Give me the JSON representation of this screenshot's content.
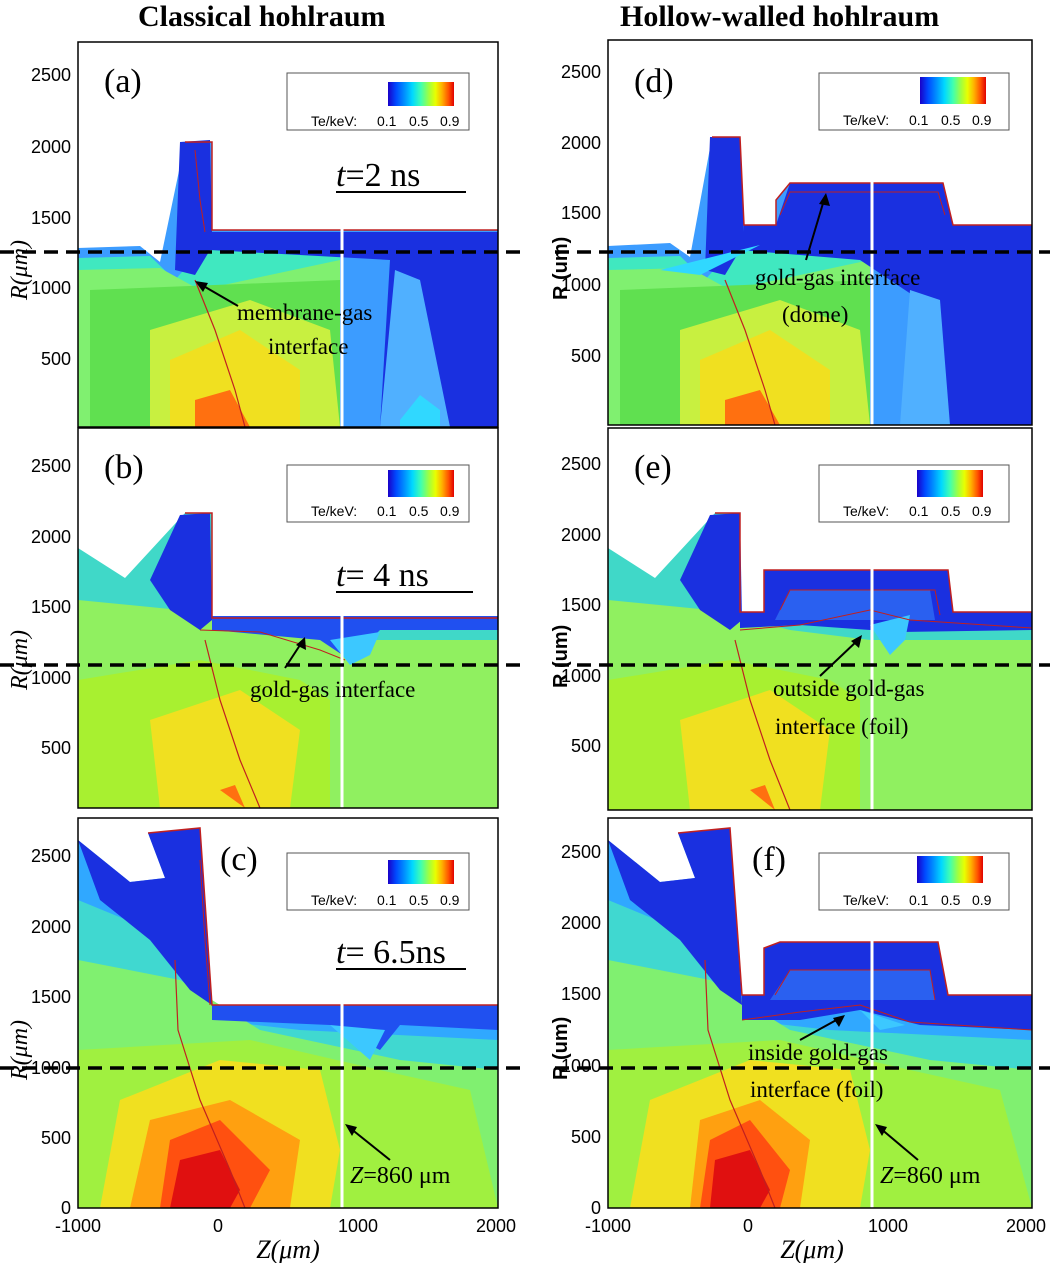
{
  "titles": {
    "left": "Classical hohlraum",
    "right": "Hollow-walled hohlraum"
  },
  "colormap": {
    "label": "Te/keV:",
    "ticks": [
      "0.1",
      "0.5",
      "0.9"
    ],
    "colors": [
      "#1a00c8",
      "#0048ff",
      "#0090ff",
      "#00d8ff",
      "#40ffb0",
      "#a0ff40",
      "#e8ff00",
      "#ffb000",
      "#ff5000",
      "#e00000"
    ]
  },
  "axes": {
    "y_label_italic": "R(μm)",
    "y_label_bold": "R (um)",
    "x_label": "Z(μm)",
    "y_ticks": [
      "2500",
      "2000",
      "1500",
      "1000",
      "500",
      "0"
    ],
    "x_ticks": [
      "-1000",
      "0",
      "1000",
      "2000"
    ]
  },
  "panels": {
    "a": {
      "tag": "(a)",
      "time_prefix": "t",
      "time_suffix": "=2 ns",
      "label1": "membrane-gas",
      "label2": "interface"
    },
    "b": {
      "tag": "(b)",
      "time_prefix": "t",
      "time_suffix": "= 4 ns",
      "label1": "gold-gas interface"
    },
    "c": {
      "tag": "(c)",
      "time_prefix": "t",
      "time_suffix": "= 6.5ns",
      "zmark_prefix": "Z",
      "zmark_suffix": "=860 μm"
    },
    "d": {
      "tag": "(d)",
      "label1": "gold-gas interface",
      "label2": "(dome)"
    },
    "e": {
      "tag": "(e)",
      "label1": "outside gold-gas",
      "label2": "interface  (foil)"
    },
    "f": {
      "tag": "(f)",
      "label1": "inside gold-gas",
      "label2": "interface  (foil)",
      "zmark_prefix": "Z",
      "zmark_suffix": "=860 μm"
    }
  }
}
